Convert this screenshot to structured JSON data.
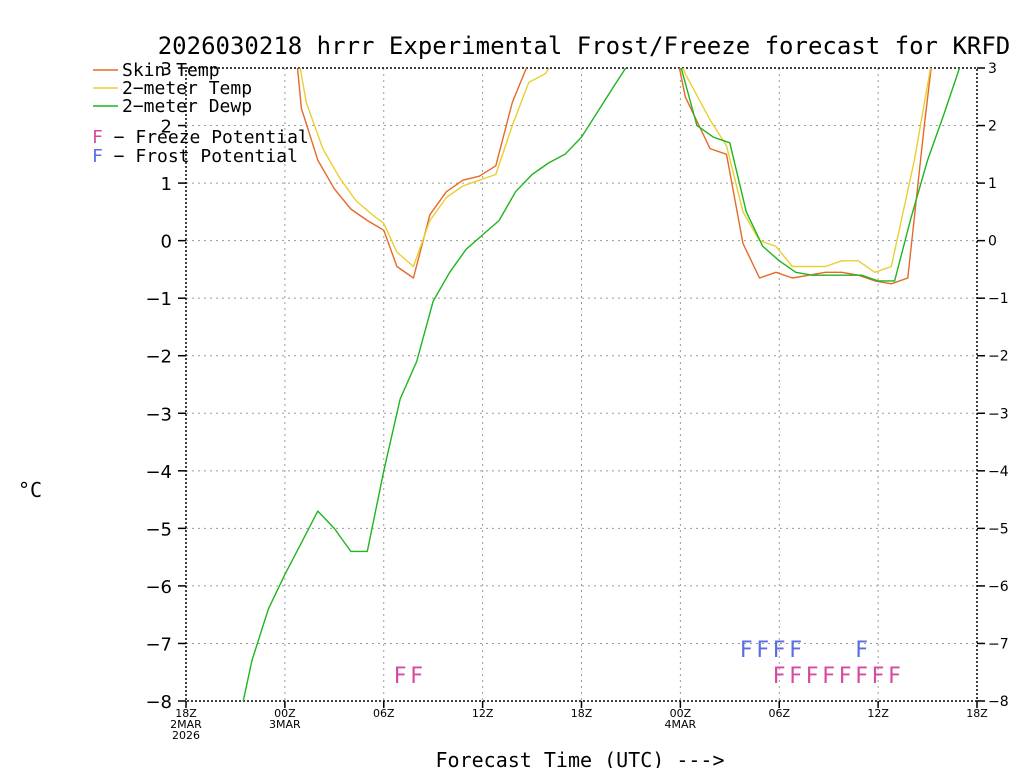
{
  "chart_data": {
    "type": "line",
    "title": "2026030218 hrrr Experimental Frost/Freeze forecast for KRFD",
    "xlabel": "Forecast Time (UTC) --->",
    "ylabel_unit": "°C",
    "ylim": [
      -8,
      3
    ],
    "xlim": [
      0,
      48
    ],
    "y_ticks": [
      3,
      2,
      1,
      0,
      -1,
      -2,
      -3,
      -4,
      -5,
      -6,
      -7,
      -8
    ],
    "y_tick_labels": [
      "3",
      "2",
      "1",
      "0",
      "−1",
      "−2",
      "−3",
      "−4",
      "−5",
      "−6",
      "−7",
      "−8"
    ],
    "x_ticks": [
      {
        "x": 0,
        "lines": [
          "18Z",
          "2MAR",
          "2026"
        ]
      },
      {
        "x": 6,
        "lines": [
          "00Z",
          "3MAR"
        ]
      },
      {
        "x": 12,
        "lines": [
          "06Z"
        ]
      },
      {
        "x": 18,
        "lines": [
          "12Z"
        ]
      },
      {
        "x": 24,
        "lines": [
          "18Z"
        ]
      },
      {
        "x": 30,
        "lines": [
          "00Z",
          "4MAR"
        ]
      },
      {
        "x": 36,
        "lines": [
          "06Z"
        ]
      },
      {
        "x": 42,
        "lines": [
          "12Z"
        ]
      },
      {
        "x": 48,
        "lines": [
          "18Z"
        ]
      }
    ],
    "grid": true,
    "legend_position": "top-left",
    "series": [
      {
        "name": "Skin Temp",
        "color": "#e6692a",
        "points": [
          [
            6.7,
            3.2
          ],
          [
            7,
            2.3
          ],
          [
            8,
            1.4
          ],
          [
            9,
            0.9
          ],
          [
            10,
            0.55
          ],
          [
            11,
            0.35
          ],
          [
            12,
            0.18
          ],
          [
            12.8,
            -0.45
          ],
          [
            13.8,
            -0.65
          ],
          [
            14.8,
            0.45
          ],
          [
            15.8,
            0.85
          ],
          [
            16.8,
            1.05
          ],
          [
            17.8,
            1.12
          ],
          [
            18.8,
            1.3
          ],
          [
            19.8,
            2.4
          ],
          [
            20.8,
            3.1
          ],
          [
            29.8,
            3.2
          ],
          [
            30.3,
            2.5
          ],
          [
            31.8,
            1.6
          ],
          [
            32.8,
            1.5
          ],
          [
            33.8,
            -0.05
          ],
          [
            34.8,
            -0.65
          ],
          [
            35.8,
            -0.55
          ],
          [
            36.8,
            -0.65
          ],
          [
            37.8,
            -0.6
          ],
          [
            38.8,
            -0.55
          ],
          [
            39.8,
            -0.55
          ],
          [
            40.8,
            -0.6
          ],
          [
            41.8,
            -0.7
          ],
          [
            42.8,
            -0.75
          ],
          [
            43.8,
            -0.65
          ],
          [
            44.8,
            2.0
          ],
          [
            45.3,
            3.2
          ]
        ]
      },
      {
        "name": "2-meter Temp",
        "color": "#e8d032",
        "points": [
          [
            6.8,
            3.2
          ],
          [
            7.3,
            2.4
          ],
          [
            8.3,
            1.6
          ],
          [
            9.3,
            1.1
          ],
          [
            10.3,
            0.7
          ],
          [
            11.3,
            0.45
          ],
          [
            12,
            0.3
          ],
          [
            12.8,
            -0.2
          ],
          [
            13.8,
            -0.45
          ],
          [
            14.8,
            0.35
          ],
          [
            15.8,
            0.75
          ],
          [
            16.8,
            0.95
          ],
          [
            17.8,
            1.05
          ],
          [
            18.8,
            1.15
          ],
          [
            19.8,
            2.0
          ],
          [
            20.8,
            2.75
          ],
          [
            21.8,
            2.9
          ],
          [
            22.5,
            3.2
          ],
          [
            29.9,
            3.2
          ],
          [
            30.3,
            2.9
          ],
          [
            31.8,
            2.1
          ],
          [
            32.8,
            1.65
          ],
          [
            33.8,
            0.5
          ],
          [
            34.8,
            0.0
          ],
          [
            35.8,
            -0.1
          ],
          [
            36.8,
            -0.45
          ],
          [
            37.8,
            -0.45
          ],
          [
            38.8,
            -0.45
          ],
          [
            39.8,
            -0.35
          ],
          [
            40.8,
            -0.35
          ],
          [
            41.8,
            -0.55
          ],
          [
            42.8,
            -0.45
          ],
          [
            44.2,
            1.4
          ],
          [
            45.3,
            3.2
          ]
        ]
      },
      {
        "name": "2-meter Dewp",
        "color": "#1fb51f",
        "points": [
          [
            3.4,
            -8.1
          ],
          [
            4,
            -7.3
          ],
          [
            5,
            -6.4
          ],
          [
            6,
            -5.8
          ],
          [
            7,
            -5.25
          ],
          [
            8,
            -4.7
          ],
          [
            9,
            -5.0
          ],
          [
            10,
            -5.4
          ],
          [
            11,
            -5.4
          ],
          [
            12,
            -4.0
          ],
          [
            13,
            -2.75
          ],
          [
            14,
            -2.1
          ],
          [
            15,
            -1.05
          ],
          [
            16,
            -0.55
          ],
          [
            17,
            -0.15
          ],
          [
            18,
            0.1
          ],
          [
            19,
            0.35
          ],
          [
            20,
            0.85
          ],
          [
            21,
            1.15
          ],
          [
            22,
            1.35
          ],
          [
            23,
            1.5
          ],
          [
            24,
            1.8
          ],
          [
            25,
            2.25
          ],
          [
            26,
            2.7
          ],
          [
            26.8,
            3.05
          ],
          [
            30,
            3.05
          ],
          [
            31,
            2.0
          ],
          [
            32,
            1.8
          ],
          [
            33,
            1.7
          ],
          [
            34,
            0.5
          ],
          [
            35,
            -0.1
          ],
          [
            36,
            -0.35
          ],
          [
            37,
            -0.55
          ],
          [
            38,
            -0.6
          ],
          [
            39,
            -0.6
          ],
          [
            40,
            -0.6
          ],
          [
            41,
            -0.6
          ],
          [
            42,
            -0.7
          ],
          [
            43,
            -0.7
          ],
          [
            44,
            0.4
          ],
          [
            45,
            1.4
          ],
          [
            46,
            2.2
          ],
          [
            47,
            3.05
          ]
        ]
      }
    ],
    "potential_markers": {
      "frost": {
        "letter": "F",
        "color": "#5b6ee0",
        "value": -7.1,
        "x": [
          34,
          35,
          36,
          37,
          41
        ]
      },
      "freeze": {
        "letter": "F",
        "color": "#d64ba2",
        "value": -7.55,
        "x": [
          13,
          14,
          36,
          37,
          38,
          39,
          40,
          41,
          42,
          43
        ]
      }
    }
  },
  "legend": {
    "entries": [
      {
        "name": "Skin Temp",
        "color": "#e6692a"
      },
      {
        "name": "2−meter Temp",
        "color": "#e8d032"
      },
      {
        "name": "2−meter Dewp",
        "color": "#1fb51f"
      }
    ],
    "potential": [
      {
        "letter": "F",
        "color": "#d64ba2",
        "text": " − Freeze Potential"
      },
      {
        "letter": "F",
        "color": "#5b6ee0",
        "text": " − Frost Potential"
      }
    ]
  }
}
